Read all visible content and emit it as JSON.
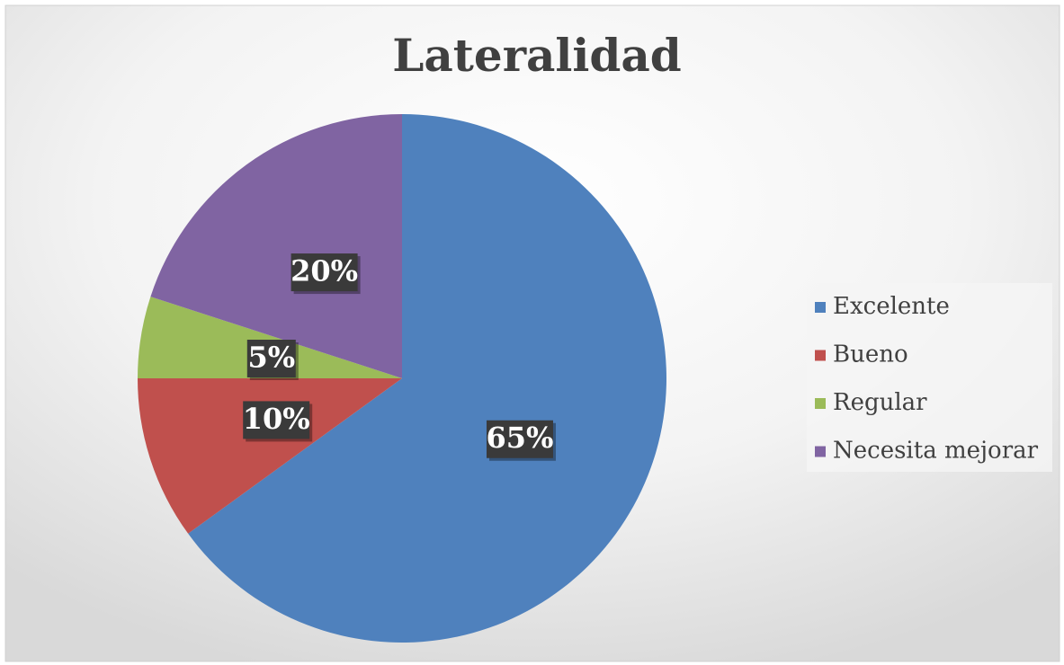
{
  "chart_data": {
    "type": "pie",
    "title": "Lateralidad",
    "categories": [
      "Excelente",
      "Bueno",
      "Regular",
      "Necesita mejorar"
    ],
    "values": [
      65,
      10,
      5,
      20
    ],
    "value_labels": [
      "65%",
      "10%",
      "5%",
      "20%"
    ],
    "colors": [
      "#4f81bd",
      "#c0504d",
      "#9bbb59",
      "#8064a2"
    ],
    "legend": "right"
  }
}
